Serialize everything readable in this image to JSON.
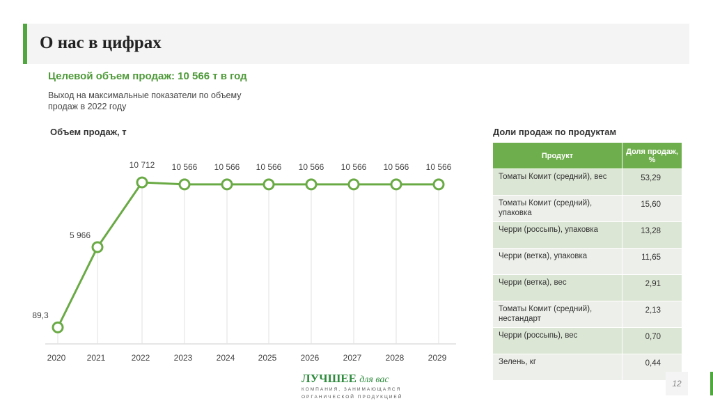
{
  "header": {
    "title": "О нас в цифрах"
  },
  "target": "Целевой объем продаж: 10 566 т в год",
  "description": "Выход на максимальные показатели по объему продаж в 2022 году",
  "chart_data": {
    "type": "line",
    "title": "Объем продаж, т",
    "categories": [
      "2020",
      "2021",
      "2022",
      "2023",
      "2024",
      "2025",
      "2026",
      "2027",
      "2028",
      "2029"
    ],
    "values": [
      89.3,
      5966,
      10712,
      10566,
      10566,
      10566,
      10566,
      10566,
      10566,
      10566
    ],
    "labels": [
      "89,3",
      "5 966",
      "10 712",
      "10 566",
      "10 566",
      "10 566",
      "10 566",
      "10 566",
      "10 566",
      "10 566"
    ],
    "ylim": [
      0,
      10712
    ],
    "color": "#6aaa45"
  },
  "table": {
    "title": "Доли продаж по продуктам",
    "headers": [
      "Продукт",
      "Доля продаж, %"
    ],
    "rows": [
      [
        "Томаты Комит (средний), вес",
        "53,29"
      ],
      [
        "Томаты Комит (средний), упаковка",
        "15,60"
      ],
      [
        "Черри (россыпь), упаковка",
        "13,28"
      ],
      [
        "Черри (ветка), упаковка",
        "11,65"
      ],
      [
        "Черри (ветка), вес",
        "2,91"
      ],
      [
        "Томаты Комит (средний), нестандарт",
        "2,13"
      ],
      [
        "Черри (россыпь), вес",
        "0,70"
      ],
      [
        "Зелень, кг",
        "0,44"
      ]
    ]
  },
  "footer": {
    "logo_main": "ЛУЧШЕЕ",
    "logo_italic": "для вас",
    "logo_line1": "КОМПАНИЯ, ЗАНИМАЮЩАЯСЯ",
    "logo_line2": "ОРГАНИЧЕСКОЙ ПРОДУКЦИЕЙ",
    "page": "12"
  }
}
